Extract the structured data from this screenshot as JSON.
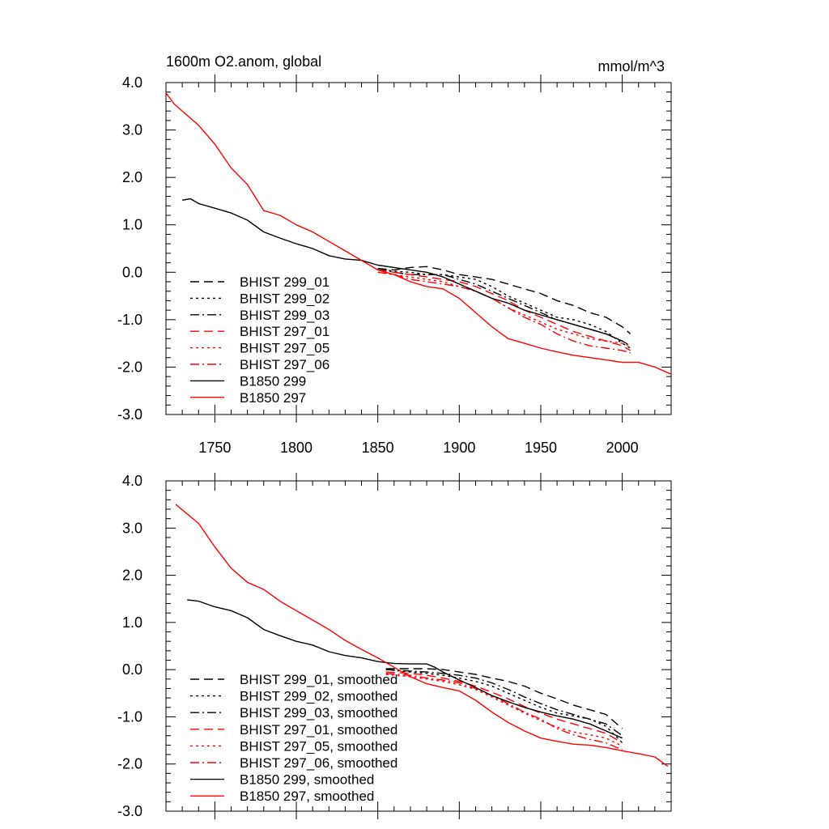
{
  "chart_data": [
    {
      "type": "line",
      "title": "1600m O2.anom, global",
      "units": "mmol/m^3",
      "xlim": [
        1720,
        2030
      ],
      "ylim": [
        -3.0,
        4.0
      ],
      "x_ticks": [
        1750,
        1800,
        1850,
        1900,
        1950,
        2000
      ],
      "x_tick_labels": [
        "1750",
        "1800",
        "1850",
        "1900",
        "1950",
        "2000"
      ],
      "y_ticks": [
        4.0,
        3.0,
        2.0,
        1.0,
        0.0,
        -1.0,
        -2.0,
        -3.0
      ],
      "y_tick_labels": [
        "4.0",
        "3.0",
        "2.0",
        "1.0",
        "0.0",
        "-1.0",
        "-2.0",
        "-3.0"
      ],
      "legend_position": "bottom-left",
      "series": [
        {
          "name": "BHIST 299_01",
          "color": "#000000",
          "dash": "long-dash",
          "x": [
            1850,
            1860,
            1870,
            1880,
            1890,
            1900,
            1910,
            1920,
            1930,
            1940,
            1950,
            1960,
            1970,
            1980,
            1990,
            2000,
            2005
          ],
          "y": [
            0.08,
            0.05,
            0.1,
            0.12,
            0.05,
            -0.05,
            -0.1,
            -0.15,
            -0.25,
            -0.35,
            -0.45,
            -0.6,
            -0.7,
            -0.85,
            -0.95,
            -1.15,
            -1.3
          ]
        },
        {
          "name": "BHIST 299_02",
          "color": "#000000",
          "dash": "dot",
          "x": [
            1850,
            1860,
            1870,
            1880,
            1890,
            1900,
            1910,
            1920,
            1930,
            1940,
            1950,
            1960,
            1970,
            1980,
            1990,
            2000,
            2005
          ],
          "y": [
            0.08,
            0.02,
            0.0,
            -0.05,
            -0.05,
            -0.1,
            -0.15,
            -0.3,
            -0.5,
            -0.65,
            -0.8,
            -0.95,
            -1.0,
            -1.1,
            -1.25,
            -1.5,
            -1.6
          ]
        },
        {
          "name": "BHIST 299_03",
          "color": "#000000",
          "dash": "dash-dot",
          "x": [
            1850,
            1860,
            1870,
            1880,
            1890,
            1900,
            1910,
            1920,
            1930,
            1940,
            1950,
            1960,
            1970,
            1980,
            1990,
            2000,
            2005
          ],
          "y": [
            0.08,
            0.0,
            -0.05,
            -0.05,
            -0.05,
            -0.15,
            -0.25,
            -0.4,
            -0.55,
            -0.7,
            -0.85,
            -1.0,
            -1.1,
            -1.2,
            -1.3,
            -1.45,
            -1.55
          ]
        },
        {
          "name": "BHIST 297_01",
          "color": "#ff0000",
          "dash": "long-dash",
          "x": [
            1850,
            1860,
            1870,
            1880,
            1890,
            1900,
            1910,
            1920,
            1930,
            1940,
            1950,
            1960,
            1970,
            1980,
            1990,
            2000,
            2005
          ],
          "y": [
            0.05,
            0.0,
            -0.05,
            -0.1,
            -0.15,
            -0.2,
            -0.3,
            -0.45,
            -0.6,
            -0.8,
            -0.95,
            -1.1,
            -1.25,
            -1.35,
            -1.45,
            -1.55,
            -1.65
          ]
        },
        {
          "name": "BHIST 297_05",
          "color": "#ff0000",
          "dash": "dot",
          "x": [
            1850,
            1860,
            1870,
            1880,
            1890,
            1900,
            1910,
            1920,
            1930,
            1940,
            1950,
            1960,
            1970,
            1980,
            1990,
            2000,
            2005
          ],
          "y": [
            0.0,
            -0.05,
            -0.1,
            -0.15,
            -0.2,
            -0.3,
            -0.4,
            -0.55,
            -0.75,
            -0.9,
            -1.05,
            -1.2,
            -1.3,
            -1.4,
            -1.45,
            -1.5,
            -1.55
          ]
        },
        {
          "name": "BHIST 297_06",
          "color": "#ff0000",
          "dash": "dash-dot",
          "x": [
            1850,
            1860,
            1870,
            1880,
            1890,
            1900,
            1910,
            1920,
            1930,
            1940,
            1950,
            1960,
            1970,
            1980,
            1990,
            2000,
            2005
          ],
          "y": [
            0.0,
            -0.05,
            -0.15,
            -0.2,
            -0.25,
            -0.3,
            -0.4,
            -0.55,
            -0.75,
            -0.95,
            -1.1,
            -1.3,
            -1.45,
            -1.55,
            -1.6,
            -1.65,
            -1.7
          ]
        },
        {
          "name": "B1850 299",
          "color": "#000000",
          "dash": "solid",
          "x": [
            1730,
            1735,
            1740,
            1750,
            1760,
            1770,
            1780,
            1790,
            1800,
            1810,
            1820,
            1830,
            1840,
            1850,
            1860,
            1870,
            1880,
            1890,
            1900,
            1910,
            1920,
            1930,
            1940,
            1950,
            1960,
            1970,
            1980,
            1990,
            2000
          ],
          "y": [
            1.52,
            1.55,
            1.45,
            1.35,
            1.25,
            1.1,
            0.85,
            0.72,
            0.6,
            0.5,
            0.35,
            0.28,
            0.25,
            0.15,
            0.1,
            0.05,
            0.0,
            -0.1,
            -0.25,
            -0.4,
            -0.55,
            -0.65,
            -0.8,
            -0.9,
            -1.0,
            -1.1,
            -1.2,
            -1.3,
            -1.45
          ]
        },
        {
          "name": "B1850 297",
          "color": "#ff0000",
          "dash": "solid",
          "x": [
            1720,
            1725,
            1730,
            1740,
            1750,
            1760,
            1770,
            1780,
            1790,
            1800,
            1810,
            1820,
            1830,
            1840,
            1850,
            1860,
            1870,
            1880,
            1890,
            1900,
            1910,
            1920,
            1930,
            1940,
            1950,
            1960,
            1970,
            1980,
            1990,
            2000,
            2010,
            2020,
            2030
          ],
          "y": [
            3.78,
            3.55,
            3.4,
            3.1,
            2.7,
            2.2,
            1.85,
            1.3,
            1.2,
            1.0,
            0.85,
            0.65,
            0.45,
            0.25,
            0.05,
            -0.05,
            -0.2,
            -0.3,
            -0.35,
            -0.55,
            -0.85,
            -1.15,
            -1.4,
            -1.5,
            -1.6,
            -1.68,
            -1.75,
            -1.8,
            -1.85,
            -1.9,
            -1.9,
            -2.0,
            -2.15
          ]
        }
      ]
    },
    {
      "type": "line",
      "xlim": [
        1720,
        2030
      ],
      "ylim": [
        -3.0,
        4.0
      ],
      "x_ticks": [
        1750,
        1800,
        1850,
        1900,
        1950,
        2000
      ],
      "y_ticks": [
        4.0,
        3.0,
        2.0,
        1.0,
        0.0,
        -1.0,
        -2.0,
        -3.0
      ],
      "y_tick_labels": [
        "4.0",
        "3.0",
        "2.0",
        "1.0",
        "0.0",
        "-1.0",
        "-2.0",
        "-3.0"
      ],
      "legend_position": "bottom-left",
      "series": [
        {
          "name": "BHIST 299_01, smoothed",
          "color": "#000000",
          "dash": "long-dash",
          "x": [
            1855,
            1870,
            1880,
            1890,
            1900,
            1910,
            1920,
            1930,
            1940,
            1950,
            1960,
            1970,
            1980,
            1990,
            2000
          ],
          "y": [
            0.02,
            0.02,
            0.02,
            0.0,
            -0.05,
            -0.1,
            -0.18,
            -0.25,
            -0.35,
            -0.5,
            -0.62,
            -0.75,
            -0.85,
            -0.95,
            -1.25
          ]
        },
        {
          "name": "BHIST 299_02, smoothed",
          "color": "#000000",
          "dash": "dot",
          "x": [
            1855,
            1870,
            1880,
            1890,
            1900,
            1910,
            1920,
            1930,
            1940,
            1950,
            1960,
            1970,
            1980,
            1990,
            2000
          ],
          "y": [
            0.0,
            -0.05,
            -0.08,
            -0.12,
            -0.18,
            -0.25,
            -0.35,
            -0.5,
            -0.65,
            -0.8,
            -0.92,
            -0.98,
            -1.05,
            -1.2,
            -1.55
          ]
        },
        {
          "name": "BHIST 299_03, smoothed",
          "color": "#000000",
          "dash": "dash-dot",
          "x": [
            1855,
            1870,
            1880,
            1890,
            1900,
            1910,
            1920,
            1930,
            1940,
            1950,
            1960,
            1970,
            1980,
            1990,
            2000
          ],
          "y": [
            0.0,
            -0.03,
            -0.05,
            -0.08,
            -0.12,
            -0.18,
            -0.28,
            -0.42,
            -0.58,
            -0.72,
            -0.85,
            -0.95,
            -1.05,
            -1.15,
            -1.4
          ]
        },
        {
          "name": "BHIST 297_01, smoothed",
          "color": "#ff0000",
          "dash": "long-dash",
          "x": [
            1855,
            1870,
            1880,
            1890,
            1900,
            1910,
            1920,
            1930,
            1940,
            1950,
            1960,
            1970,
            1980,
            1990,
            2000
          ],
          "y": [
            -0.05,
            -0.08,
            -0.12,
            -0.18,
            -0.25,
            -0.35,
            -0.48,
            -0.62,
            -0.78,
            -0.92,
            -1.05,
            -1.15,
            -1.25,
            -1.35,
            -1.55
          ]
        },
        {
          "name": "BHIST 297_05, smoothed",
          "color": "#ff0000",
          "dash": "dot",
          "x": [
            1855,
            1870,
            1880,
            1890,
            1900,
            1910,
            1920,
            1930,
            1940,
            1950,
            1960,
            1970,
            1980,
            1990,
            2000
          ],
          "y": [
            -0.1,
            -0.15,
            -0.2,
            -0.25,
            -0.32,
            -0.42,
            -0.58,
            -0.75,
            -0.92,
            -1.08,
            -1.22,
            -1.32,
            -1.38,
            -1.45,
            -1.62
          ]
        },
        {
          "name": "BHIST 297_06, smoothed",
          "color": "#ff0000",
          "dash": "dash-dot",
          "x": [
            1855,
            1870,
            1880,
            1890,
            1900,
            1910,
            1920,
            1930,
            1940,
            1950,
            1960,
            1970,
            1980,
            1990,
            2000
          ],
          "y": [
            -0.08,
            -0.12,
            -0.18,
            -0.22,
            -0.28,
            -0.4,
            -0.55,
            -0.72,
            -0.9,
            -1.05,
            -1.25,
            -1.38,
            -1.48,
            -1.55,
            -1.7
          ]
        },
        {
          "name": "B1850 299, smoothed",
          "color": "#000000",
          "dash": "solid",
          "x": [
            1733,
            1740,
            1750,
            1760,
            1770,
            1780,
            1790,
            1800,
            1810,
            1820,
            1830,
            1840,
            1850,
            1860,
            1870,
            1880,
            1885,
            1890,
            1900,
            1910,
            1920,
            1930,
            1940,
            1950,
            1960,
            1970,
            1980,
            1990,
            2000
          ],
          "y": [
            1.48,
            1.45,
            1.33,
            1.25,
            1.1,
            0.85,
            0.72,
            0.6,
            0.52,
            0.38,
            0.3,
            0.25,
            0.17,
            0.13,
            0.12,
            0.12,
            0.05,
            -0.05,
            -0.22,
            -0.38,
            -0.55,
            -0.68,
            -0.8,
            -0.9,
            -0.98,
            -1.05,
            -1.15,
            -1.3,
            -1.45
          ]
        },
        {
          "name": "B1850 297, smoothed",
          "color": "#ff0000",
          "dash": "solid",
          "x": [
            1726,
            1740,
            1750,
            1760,
            1770,
            1780,
            1790,
            1800,
            1810,
            1820,
            1830,
            1840,
            1850,
            1860,
            1870,
            1880,
            1890,
            1900,
            1910,
            1920,
            1930,
            1940,
            1950,
            1960,
            1970,
            1980,
            1990,
            2000,
            2010,
            2020,
            2028
          ],
          "y": [
            3.5,
            3.1,
            2.6,
            2.15,
            1.85,
            1.7,
            1.45,
            1.25,
            1.05,
            0.85,
            0.62,
            0.43,
            0.25,
            0.05,
            -0.15,
            -0.3,
            -0.38,
            -0.45,
            -0.65,
            -0.9,
            -1.12,
            -1.3,
            -1.45,
            -1.52,
            -1.58,
            -1.6,
            -1.65,
            -1.72,
            -1.78,
            -1.85,
            -2.05
          ]
        }
      ]
    }
  ]
}
